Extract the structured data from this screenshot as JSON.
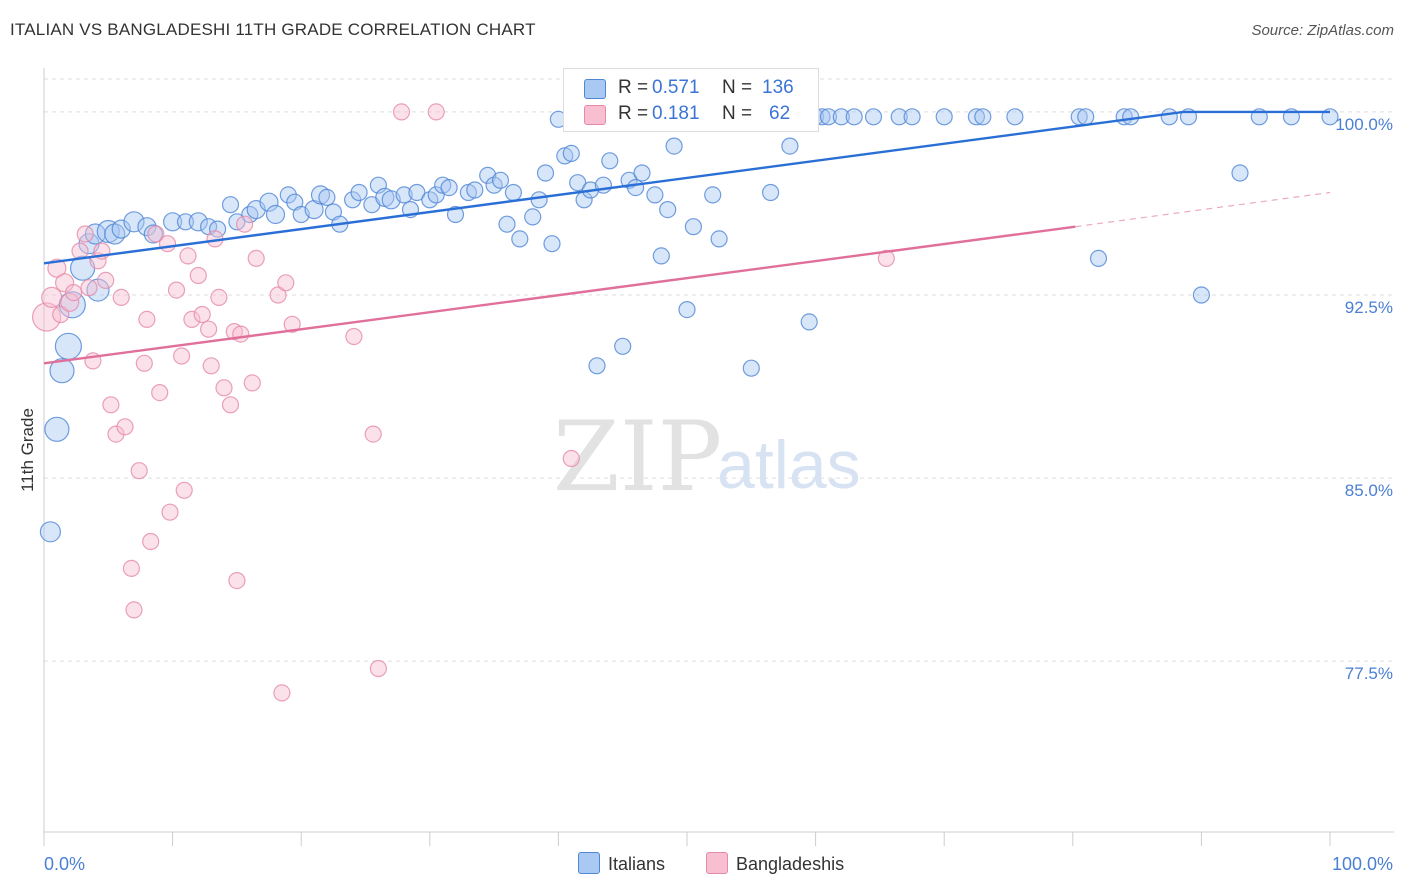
{
  "title": "ITALIAN VS BANGLADESHI 11TH GRADE CORRELATION CHART",
  "source": "Source: ZipAtlas.com",
  "watermark": {
    "zip": "ZIP",
    "atlas": "atlas"
  },
  "legend": {
    "rows": [
      {
        "r_label": "R =",
        "r_value": "0.571",
        "n_label": "N =",
        "n_value": "136"
      },
      {
        "r_label": "R =",
        "r_value": "0.181",
        "n_label": "N =",
        "n_value": "62"
      }
    ]
  },
  "bottom_legend": [
    "Italians",
    "Bangladeshis"
  ],
  "colors": {
    "italians_fill": "#a9c8f2",
    "italians_stroke": "#4f86d6",
    "italians_line": "#2a6fd6",
    "bangladeshis_fill": "#f7bfd0",
    "bangladeshis_stroke": "#e58aa8",
    "bangladeshis_line": "#e0709a",
    "grid": "#dddddd",
    "axis_text": "#4a7fd4"
  },
  "chart_data": {
    "type": "scatter",
    "title": "ITALIAN VS BANGLADESHI 11TH GRADE CORRELATION CHART",
    "xlabel": "",
    "ylabel": "11th Grade",
    "xlim": [
      0,
      100
    ],
    "ylim": [
      70.5,
      101.8
    ],
    "x_tick_labels": [
      "0.0%",
      "100.0%"
    ],
    "y_ticks": [
      77.5,
      85.0,
      92.5,
      100.0
    ],
    "y_tick_labels": [
      "77.5%",
      "85.0%",
      "92.5%",
      "100.0%"
    ],
    "grid": true,
    "legend_position": "top-center",
    "series": [
      {
        "name": "Italians",
        "r": 0.571,
        "n": 136,
        "trend": {
          "x": [
            0,
            88.6
          ],
          "y": [
            93.8,
            100.0
          ]
        },
        "points": [
          [
            0.5,
            82.8,
            10
          ],
          [
            1.0,
            87.0,
            12
          ],
          [
            1.4,
            89.4,
            12
          ],
          [
            1.9,
            90.4,
            13
          ],
          [
            2.2,
            92.1,
            13
          ],
          [
            3.0,
            93.6,
            12
          ],
          [
            3.5,
            94.6,
            10
          ],
          [
            4.0,
            95.0,
            10
          ],
          [
            4.2,
            92.7,
            11
          ],
          [
            5.0,
            95.1,
            11
          ],
          [
            5.5,
            95.0,
            10
          ],
          [
            6.0,
            95.2,
            9
          ],
          [
            7.0,
            95.5,
            10
          ],
          [
            8.0,
            95.3,
            9
          ],
          [
            8.5,
            95.0,
            9
          ],
          [
            10.0,
            95.5,
            9
          ],
          [
            11.0,
            95.5,
            8
          ],
          [
            12.0,
            95.5,
            9
          ],
          [
            12.8,
            95.3,
            8
          ],
          [
            13.5,
            95.2,
            8
          ],
          [
            14.5,
            96.2,
            8
          ],
          [
            15.0,
            95.5,
            8
          ],
          [
            16.0,
            95.8,
            8
          ],
          [
            16.5,
            96.0,
            9
          ],
          [
            17.5,
            96.3,
            9
          ],
          [
            18.0,
            95.8,
            9
          ],
          [
            19.0,
            96.6,
            8
          ],
          [
            19.5,
            96.3,
            8
          ],
          [
            20.0,
            95.8,
            8
          ],
          [
            21.0,
            96.0,
            9
          ],
          [
            21.5,
            96.6,
            9
          ],
          [
            22.0,
            96.5,
            8
          ],
          [
            22.5,
            95.9,
            8
          ],
          [
            23.0,
            95.4,
            8
          ],
          [
            24.0,
            96.4,
            8
          ],
          [
            24.5,
            96.7,
            8
          ],
          [
            25.5,
            96.2,
            8
          ],
          [
            26.0,
            97.0,
            8
          ],
          [
            26.5,
            96.5,
            9
          ],
          [
            27.0,
            96.4,
            9
          ],
          [
            28.0,
            96.6,
            8
          ],
          [
            28.5,
            96.0,
            8
          ],
          [
            29.0,
            96.7,
            8
          ],
          [
            30.0,
            96.4,
            8
          ],
          [
            30.5,
            96.6,
            8
          ],
          [
            31.0,
            97.0,
            8
          ],
          [
            31.5,
            96.9,
            8
          ],
          [
            32.0,
            95.8,
            8
          ],
          [
            33.0,
            96.7,
            8
          ],
          [
            33.5,
            96.8,
            8
          ],
          [
            34.5,
            97.4,
            8
          ],
          [
            35.0,
            97.0,
            8
          ],
          [
            35.5,
            97.2,
            8
          ],
          [
            36.0,
            95.4,
            8
          ],
          [
            36.5,
            96.7,
            8
          ],
          [
            37.0,
            94.8,
            8
          ],
          [
            38.0,
            95.7,
            8
          ],
          [
            38.5,
            96.4,
            8
          ],
          [
            39.0,
            97.5,
            8
          ],
          [
            39.5,
            94.6,
            8
          ],
          [
            40.0,
            99.7,
            8
          ],
          [
            40.5,
            98.2,
            8
          ],
          [
            41.0,
            98.3,
            8
          ],
          [
            41.5,
            97.1,
            8
          ],
          [
            42.0,
            96.4,
            8
          ],
          [
            42.5,
            96.8,
            8
          ],
          [
            43.0,
            89.6,
            8
          ],
          [
            43.5,
            97.0,
            8
          ],
          [
            44.0,
            98.0,
            8
          ],
          [
            44.5,
            99.8,
            8
          ],
          [
            45.0,
            90.4,
            8
          ],
          [
            45.5,
            97.2,
            8
          ],
          [
            46.0,
            96.9,
            8
          ],
          [
            46.5,
            97.5,
            8
          ],
          [
            47.0,
            99.8,
            8
          ],
          [
            47.5,
            96.6,
            8
          ],
          [
            48.0,
            94.1,
            8
          ],
          [
            48.5,
            96.0,
            8
          ],
          [
            49.0,
            98.6,
            8
          ],
          [
            49.5,
            99.8,
            8
          ],
          [
            50.0,
            91.9,
            8
          ],
          [
            50.5,
            95.3,
            8
          ],
          [
            51.0,
            99.8,
            8
          ],
          [
            52.0,
            96.6,
            8
          ],
          [
            52.5,
            94.8,
            8
          ],
          [
            53.0,
            99.8,
            8
          ],
          [
            53.5,
            99.8,
            8
          ],
          [
            54.0,
            99.8,
            8
          ],
          [
            55.0,
            89.5,
            8
          ],
          [
            55.5,
            99.8,
            8
          ],
          [
            56.0,
            99.8,
            8
          ],
          [
            56.5,
            96.7,
            8
          ],
          [
            57.0,
            99.8,
            8
          ],
          [
            57.5,
            99.8,
            8
          ],
          [
            58.0,
            98.6,
            8
          ],
          [
            59.0,
            99.8,
            8
          ],
          [
            59.5,
            91.4,
            8
          ],
          [
            60.0,
            99.8,
            8
          ],
          [
            60.5,
            99.8,
            8
          ],
          [
            61.0,
            99.8,
            8
          ],
          [
            62.0,
            99.8,
            8
          ],
          [
            63.0,
            99.8,
            8
          ],
          [
            64.5,
            99.8,
            8
          ],
          [
            66.5,
            99.8,
            8
          ],
          [
            67.5,
            99.8,
            8
          ],
          [
            70.0,
            99.8,
            8
          ],
          [
            72.5,
            99.8,
            8
          ],
          [
            73.0,
            99.8,
            8
          ],
          [
            75.5,
            99.8,
            8
          ],
          [
            80.5,
            99.8,
            8
          ],
          [
            81.0,
            99.8,
            8
          ],
          [
            82.0,
            94.0,
            8
          ],
          [
            84.0,
            99.8,
            8
          ],
          [
            84.5,
            99.8,
            8
          ],
          [
            87.5,
            99.8,
            8
          ],
          [
            89.0,
            99.8,
            8
          ],
          [
            90.0,
            92.5,
            8
          ],
          [
            93.0,
            97.5,
            8
          ],
          [
            94.5,
            99.8,
            8
          ],
          [
            97.0,
            99.8,
            8
          ],
          [
            100.0,
            99.8,
            8
          ]
        ]
      },
      {
        "name": "Bangladeshis",
        "r": 0.181,
        "n": 62,
        "trend": {
          "x": [
            0,
            80.2
          ],
          "y": [
            89.7,
            95.3
          ]
        },
        "trend_extension": {
          "x": [
            80.2,
            100
          ],
          "y": [
            95.3,
            96.7
          ]
        },
        "points": [
          [
            0.2,
            91.6,
            14
          ],
          [
            0.6,
            92.4,
            10
          ],
          [
            1.0,
            93.6,
            9
          ],
          [
            1.3,
            91.7,
            8
          ],
          [
            1.6,
            93.0,
            9
          ],
          [
            2.0,
            92.2,
            9
          ],
          [
            2.3,
            92.6,
            8
          ],
          [
            2.8,
            94.3,
            8
          ],
          [
            3.2,
            95.0,
            8
          ],
          [
            3.5,
            92.8,
            8
          ],
          [
            3.8,
            89.8,
            8
          ],
          [
            4.2,
            93.9,
            8
          ],
          [
            4.5,
            94.3,
            8
          ],
          [
            4.8,
            93.1,
            8
          ],
          [
            5.2,
            88.0,
            8
          ],
          [
            5.6,
            86.8,
            8
          ],
          [
            6.0,
            92.4,
            8
          ],
          [
            6.3,
            87.1,
            8
          ],
          [
            6.8,
            81.3,
            8
          ],
          [
            7.0,
            79.6,
            8
          ],
          [
            7.4,
            85.3,
            8
          ],
          [
            7.8,
            89.7,
            8
          ],
          [
            8.0,
            91.5,
            8
          ],
          [
            8.3,
            82.4,
            8
          ],
          [
            8.7,
            95.0,
            8
          ],
          [
            9.0,
            88.5,
            8
          ],
          [
            9.6,
            94.6,
            8
          ],
          [
            9.8,
            83.6,
            8
          ],
          [
            10.3,
            92.7,
            8
          ],
          [
            10.7,
            90.0,
            8
          ],
          [
            10.9,
            84.5,
            8
          ],
          [
            11.2,
            94.1,
            8
          ],
          [
            11.5,
            91.5,
            8
          ],
          [
            12.0,
            93.3,
            8
          ],
          [
            12.3,
            91.7,
            8
          ],
          [
            12.8,
            91.1,
            8
          ],
          [
            13.0,
            89.6,
            8
          ],
          [
            13.3,
            94.8,
            8
          ],
          [
            13.6,
            92.4,
            8
          ],
          [
            14.0,
            88.7,
            8
          ],
          [
            14.5,
            88.0,
            8
          ],
          [
            14.8,
            91.0,
            8
          ],
          [
            15.0,
            80.8,
            8
          ],
          [
            15.3,
            90.9,
            8
          ],
          [
            15.6,
            95.4,
            8
          ],
          [
            16.2,
            88.9,
            8
          ],
          [
            16.5,
            94.0,
            8
          ],
          [
            18.2,
            92.5,
            8
          ],
          [
            18.5,
            76.2,
            8
          ],
          [
            18.8,
            93.0,
            8
          ],
          [
            19.3,
            91.3,
            8
          ],
          [
            24.1,
            90.8,
            8
          ],
          [
            25.6,
            86.8,
            8
          ],
          [
            26.0,
            77.2,
            8
          ],
          [
            27.8,
            100.0,
            8
          ],
          [
            30.5,
            100.0,
            8
          ],
          [
            41.0,
            85.8,
            8
          ],
          [
            42.0,
            99.9,
            8
          ],
          [
            49.0,
            99.9,
            8
          ],
          [
            52.5,
            99.9,
            8
          ],
          [
            57.0,
            99.9,
            8
          ],
          [
            58.5,
            99.9,
            8
          ],
          [
            65.5,
            94.0,
            8
          ]
        ]
      }
    ]
  }
}
